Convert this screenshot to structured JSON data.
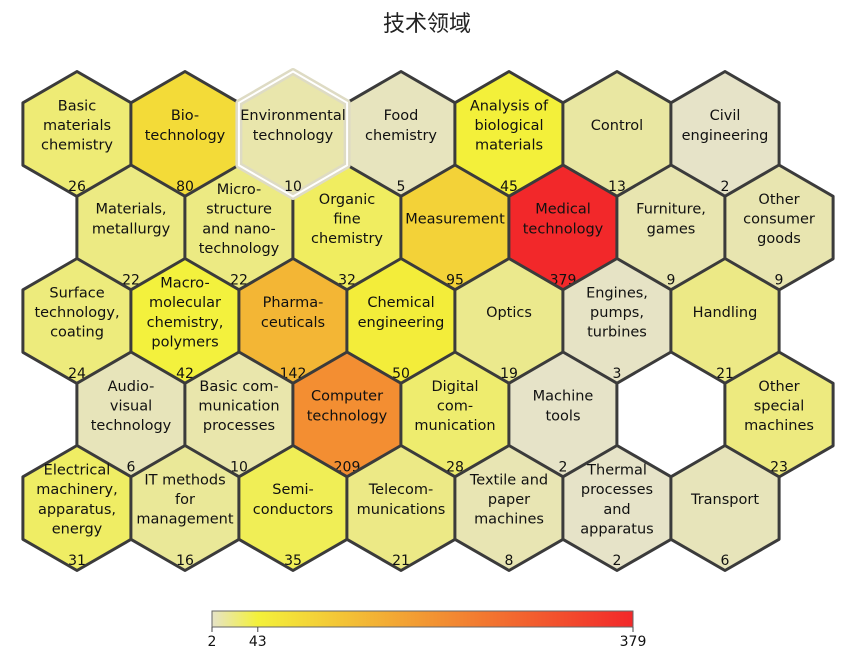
{
  "chart_data": {
    "type": "heatmap",
    "subtype": "hexagonal tile map",
    "title": "技术领域",
    "color_scale": {
      "min": 2,
      "mid": 43,
      "max": 379,
      "colors": [
        "#e6e3c8",
        "#f3f13a",
        "#f2282a"
      ],
      "tick_labels": [
        "2",
        "43",
        "379"
      ]
    },
    "rows": [
      [
        {
          "name": "Basic\nmaterials\nchemistry",
          "value": 26
        },
        {
          "name": "Bio-\ntechnology",
          "value": 80
        },
        {
          "name": "Environmental\ntechnology",
          "value": 10
        },
        {
          "name": "Food\nchemistry",
          "value": 5
        },
        {
          "name": "Analysis of\nbiological\nmaterials",
          "value": 45
        },
        {
          "name": "Control",
          "value": 13
        },
        {
          "name": "Civil\nengineering",
          "value": 2
        }
      ],
      [
        {
          "name": "Materials,\nmetallurgy",
          "value": 22
        },
        {
          "name": "Micro-\nstructure\nand nano-\ntechnology",
          "value": 22
        },
        {
          "name": "Organic\nfine\nchemistry",
          "value": 32
        },
        {
          "name": "Measurement",
          "value": 95
        },
        {
          "name": "Medical\ntechnology",
          "value": 379
        },
        {
          "name": "Furniture,\ngames",
          "value": 9
        },
        {
          "name": "Other\nconsumer\ngoods",
          "value": 9
        }
      ],
      [
        {
          "name": "Surface\ntechnology,\ncoating",
          "value": 24
        },
        {
          "name": "Macro-\nmolecular\nchemistry,\npolymers",
          "value": 42
        },
        {
          "name": "Pharma-\nceuticals",
          "value": 142
        },
        {
          "name": "Chemical\nengineering",
          "value": 50
        },
        {
          "name": "Optics",
          "value": 19
        },
        {
          "name": "Engines,\npumps,\nturbines",
          "value": 3
        },
        {
          "name": "Handling",
          "value": 21
        }
      ],
      [
        {
          "name": "Audio-\nvisual\ntechnology",
          "value": 6
        },
        {
          "name": "Basic com-\nmunication\nprocesses",
          "value": 10
        },
        {
          "name": "Computer\ntechnology",
          "value": 209
        },
        {
          "name": "Digital\ncom-\nmunication",
          "value": 28
        },
        {
          "name": "Machine\ntools",
          "value": 2
        },
        {
          "name": "",
          "value": null
        },
        {
          "name": "Other\nspecial\nmachines",
          "value": 23
        }
      ],
      [
        {
          "name": "Electrical\nmachinery,\napparatus,\nenergy",
          "value": 31
        },
        {
          "name": "IT methods\nfor\nmanagement",
          "value": 16
        },
        {
          "name": "Semi-\nconductors",
          "value": 35
        },
        {
          "name": "Telecom-\nmunications",
          "value": 21
        },
        {
          "name": "Textile and\npaper\nmachines",
          "value": 8
        },
        {
          "name": "Thermal\nprocesses\nand\napparatus",
          "value": 2
        },
        {
          "name": "Transport",
          "value": 6
        }
      ]
    ],
    "highlighted": [
      "Environmental\ntechnology"
    ]
  }
}
